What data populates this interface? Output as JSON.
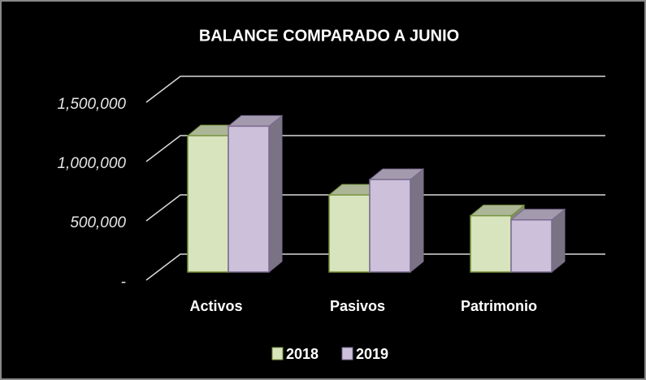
{
  "chart_data": {
    "type": "bar3d",
    "title": "BALANCE COMPARADO  A JUNIO",
    "categories": [
      "Activos",
      "Pasivos",
      "Patrimonio"
    ],
    "series": [
      {
        "name": "2018",
        "color": "#d7e4bd",
        "values": [
          1150000,
          650000,
          475000
        ]
      },
      {
        "name": "2019",
        "color": "#ccc0da",
        "values": [
          1230000,
          780000,
          440000
        ]
      }
    ],
    "ylim": [
      0,
      1500000
    ],
    "yticks": [
      {
        "value": 0,
        "label": "-"
      },
      {
        "value": 500000,
        "label": "500,000"
      },
      {
        "value": 1000000,
        "label": "1,000,000"
      },
      {
        "value": 1500000,
        "label": "1,500,000"
      }
    ],
    "grid": true,
    "legend": "bottom"
  }
}
